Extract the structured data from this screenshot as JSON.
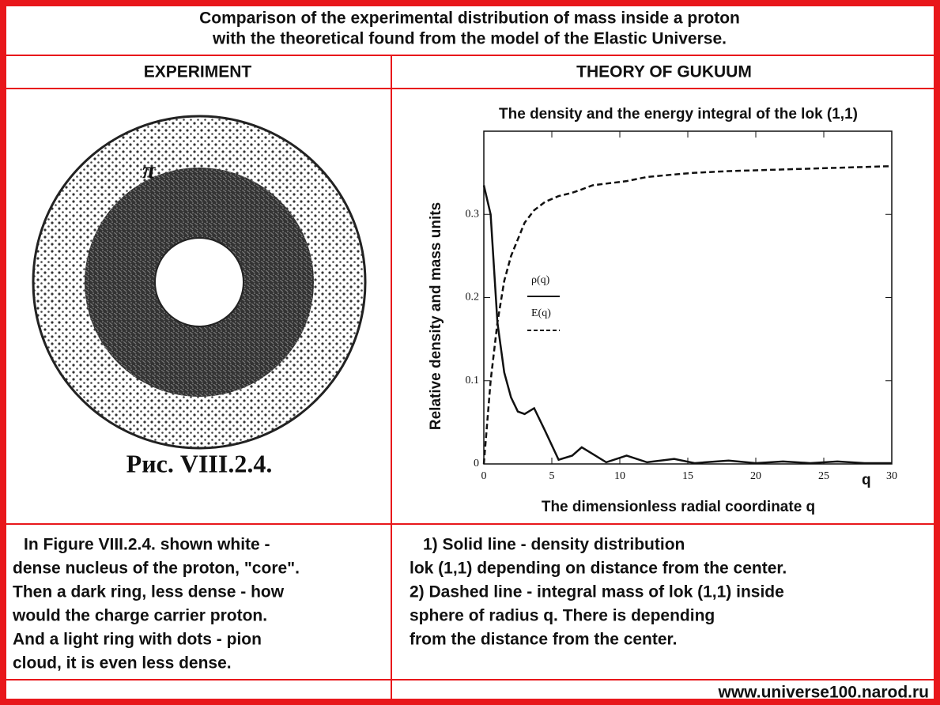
{
  "header": {
    "title_lines": [
      "Comparison of the experimental distribution of mass inside a proton",
      "with the theoretical found from the model of the Elastic Universe."
    ]
  },
  "columns": {
    "left": "EXPERIMENT",
    "right": "THEORY OF GUKUUM"
  },
  "figure": {
    "symbol": "π",
    "caption": "Рис. VIII.2.4."
  },
  "chart_data": {
    "type": "line",
    "title": "The density and the energy integral of the lok (1,1)",
    "y_label": "Relative density and mass units",
    "x_label": "The dimensionless radial coordinate q",
    "axis_annotation": "q",
    "x": [
      0,
      0.5,
      1,
      1.5,
      2,
      2.5,
      3,
      3.7,
      4.5,
      5.5,
      6.5,
      7.2,
      8,
      9,
      10.5,
      12,
      14,
      15.5,
      18,
      20,
      22,
      24,
      26,
      28,
      30
    ],
    "series": [
      {
        "name": "ρ(q)",
        "color": "#111111",
        "dash": false,
        "values": [
          0.335,
          0.3,
          0.17,
          0.11,
          0.08,
          0.063,
          0.06,
          0.067,
          0.04,
          0.005,
          0.01,
          0.02,
          0.012,
          0.002,
          0.01,
          0.002,
          0.006,
          0.001,
          0.004,
          0.001,
          0.003,
          0.001,
          0.003,
          0.001,
          0.001
        ]
      },
      {
        "name": "E(q)",
        "color": "#111111",
        "dash": true,
        "values": [
          0,
          0.1,
          0.17,
          0.22,
          0.25,
          0.27,
          0.29,
          0.305,
          0.315,
          0.322,
          0.326,
          0.33,
          0.335,
          0.337,
          0.34,
          0.345,
          0.348,
          0.35,
          0.352,
          0.353,
          0.354,
          0.355,
          0.356,
          0.357,
          0.358
        ]
      }
    ],
    "xlim": [
      0,
      30
    ],
    "xticks": [
      0,
      5,
      10,
      15,
      20,
      25,
      30
    ],
    "ylim": [
      0,
      0.4
    ],
    "yticks": [
      0,
      0.1,
      0.2,
      0.3
    ]
  },
  "notes": {
    "left": [
      "In Figure VIII.2.4. shown white -",
      "dense nucleus of the proton, \"core\".",
      "Then a dark ring, less dense - how",
      "would the charge carrier proton.",
      "And a light ring with dots - pion",
      "cloud, it is even less dense."
    ],
    "right": [
      "1) Solid line - density distribution",
      "lok (1,1) depending on distance from the center.",
      "2) Dashed line - integral mass of lok (1,1) inside",
      "sphere of radius q. There is depending",
      "from the distance from the center."
    ]
  },
  "footer": "www.universe100.narod.ru"
}
